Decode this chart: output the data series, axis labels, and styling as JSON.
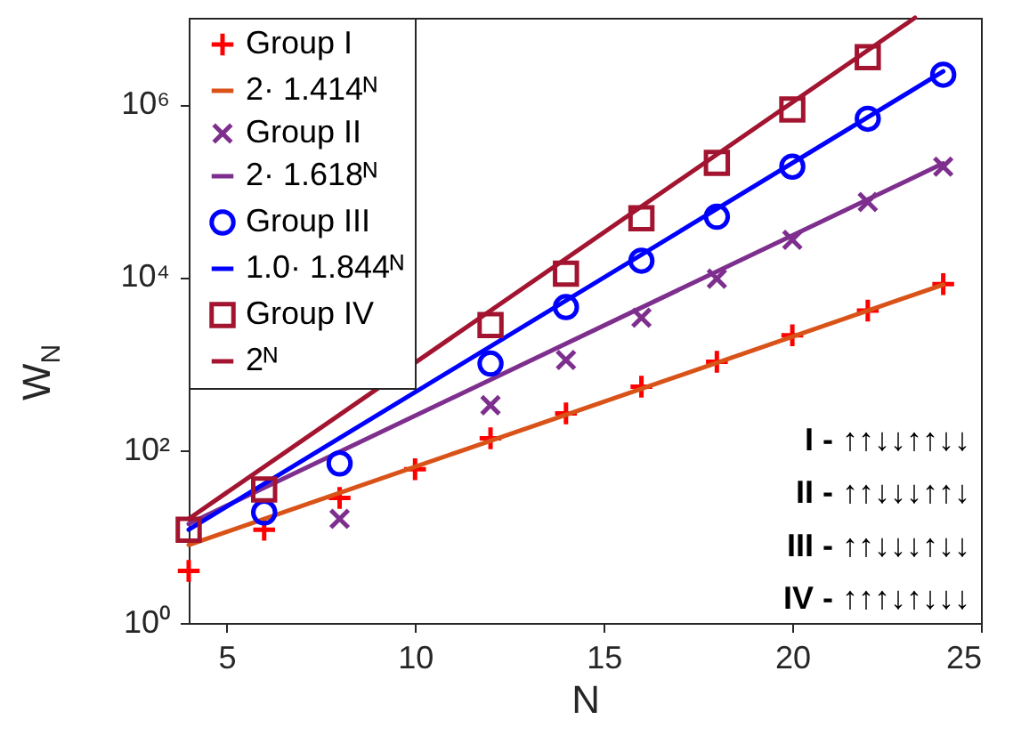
{
  "chart_data": {
    "type": "scatter",
    "xlabel": "N",
    "ylabel": "W$_{N}$",
    "xlim": [
      4,
      25
    ],
    "xticks": [
      5,
      10,
      15,
      20,
      25
    ],
    "ylim": [
      1,
      10000000
    ],
    "yticks": [
      {
        "value": 1,
        "label": "10⁰"
      },
      {
        "value": 100,
        "label": "10²"
      },
      {
        "value": 10000,
        "label": "10⁴"
      },
      {
        "value": 1000000,
        "label": "10⁶"
      }
    ],
    "log": "y",
    "grid": false,
    "legend": "top left",
    "series": [
      {
        "name": "Group I",
        "type": "scatter",
        "marker": "plus",
        "color": "#ff0000",
        "x": [
          4,
          6,
          8,
          10,
          12,
          14,
          16,
          18,
          20,
          22,
          24
        ],
        "values": [
          4,
          12,
          28,
          60,
          137,
          265,
          540,
          1050,
          2130,
          4100,
          8300
        ]
      },
      {
        "name": "2· 1.414ᴺ",
        "type": "line",
        "marker": "none",
        "color": "#d95319",
        "x": [
          4,
          24
        ],
        "values": [
          8,
          8192
        ]
      },
      {
        "name": "Group II",
        "type": "scatter",
        "marker": "cross",
        "color": "#7e2f8e",
        "x": [
          8,
          10,
          12,
          14,
          16,
          18,
          20,
          22,
          24
        ],
        "values": [
          16,
          null,
          330,
          1100,
          3400,
          9600,
          27000,
          74000,
          190000
        ]
      },
      {
        "name": "2· 1.618ᴺ",
        "type": "line",
        "marker": "none",
        "color": "#7e2f8e",
        "x": [
          4,
          24
        ],
        "values": [
          14,
          207000
        ]
      },
      {
        "name": "Group III",
        "type": "scatter",
        "marker": "circle",
        "color": "#0000ff",
        "x": [
          6,
          8,
          10,
          12,
          14,
          16,
          18,
          20,
          22,
          24
        ],
        "values": [
          19,
          70,
          null,
          1000,
          4500,
          15500,
          50000,
          190000,
          680000,
          2200000
        ]
      },
      {
        "name": "1.0· 1.844ᴺ",
        "type": "line",
        "marker": "none",
        "color": "#0000ff",
        "x": [
          4,
          24
        ],
        "values": [
          12,
          2400000
        ]
      },
      {
        "name": "Group IV",
        "type": "scatter",
        "marker": "square",
        "color": "#a2142f",
        "x": [
          4,
          6,
          8,
          10,
          12,
          14,
          16,
          18,
          20,
          22
        ],
        "values": [
          12,
          35,
          null,
          null,
          2800,
          11000,
          48000,
          210000,
          870000,
          3500000
        ]
      },
      {
        "name": "2ᴺ",
        "type": "line",
        "marker": "none",
        "color": "#a2142f",
        "x": [
          4,
          23.25
        ],
        "values": [
          16,
          10000000
        ]
      }
    ],
    "annotations": [
      "I  - ↑↑↓↓↑↑↓↓",
      "II  - ↑↑↓↓↓↑↑↓",
      "III - ↑↑↓↓↓↑↓↓",
      "IV - ↑↑↑↓↑↓↓↓"
    ]
  }
}
